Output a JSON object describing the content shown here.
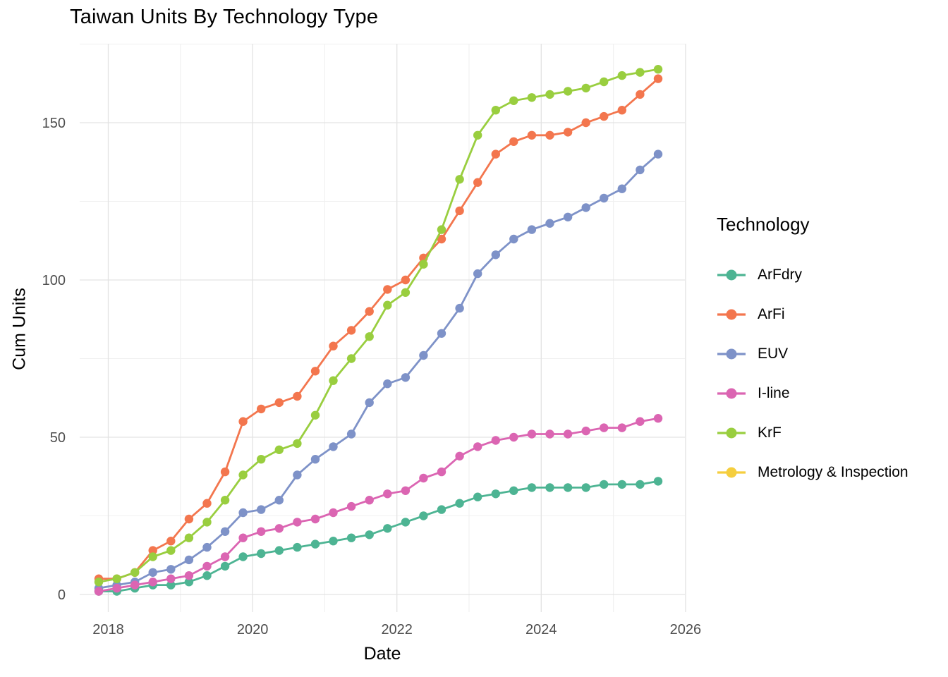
{
  "chart_data": {
    "type": "line",
    "title": "Taiwan Units By Technology Type",
    "xlabel": "Date",
    "ylabel": "Cum Units",
    "legend_title": "Technology",
    "legend_position": "right",
    "grid": true,
    "x_tick_labels": [
      "2018",
      "2020",
      "2022",
      "2024",
      "2026"
    ],
    "x_minor_gridline_years": [
      2019,
      2021,
      2023,
      2025
    ],
    "y_tick_labels": [
      "0",
      "50",
      "100",
      "150"
    ],
    "y_minor_gridline_values": [
      25,
      75,
      125,
      175
    ],
    "ylim": [
      -6,
      175
    ],
    "categories": [
      "2017 Q4",
      "2018 Q1",
      "2018 Q2",
      "2018 Q3",
      "2018 Q4",
      "2019 Q1",
      "2019 Q2",
      "2019 Q3",
      "2019 Q4",
      "2020 Q1",
      "2020 Q2",
      "2020 Q3",
      "2020 Q4",
      "2021 Q1",
      "2021 Q2",
      "2021 Q3",
      "2021 Q4",
      "2022 Q1",
      "2022 Q2",
      "2022 Q3",
      "2022 Q4",
      "2023 Q1",
      "2023 Q2",
      "2023 Q3",
      "2023 Q4",
      "2024 Q1",
      "2024 Q2",
      "2024 Q3",
      "2024 Q4",
      "2025 Q1",
      "2025 Q2",
      "2025 Q3"
    ],
    "series": [
      {
        "name": "ArFdry",
        "color": "#4DB493",
        "values": [
          1,
          1,
          2,
          3,
          3,
          4,
          6,
          9,
          12,
          13,
          14,
          15,
          16,
          17,
          18,
          19,
          21,
          23,
          25,
          27,
          29,
          31,
          32,
          33,
          34,
          34,
          34,
          34,
          35,
          35,
          35,
          36
        ]
      },
      {
        "name": "ArFi",
        "color": "#F3764E",
        "values": [
          5,
          5,
          7,
          14,
          17,
          24,
          29,
          39,
          55,
          59,
          61,
          63,
          71,
          79,
          84,
          90,
          97,
          100,
          107,
          113,
          122,
          131,
          140,
          144,
          146,
          146,
          147,
          150,
          152,
          154,
          159,
          164
        ]
      },
      {
        "name": "EUV",
        "color": "#7E92C8",
        "values": [
          2,
          3,
          4,
          7,
          8,
          11,
          15,
          20,
          26,
          27,
          30,
          38,
          43,
          47,
          51,
          61,
          67,
          69,
          76,
          83,
          91,
          102,
          108,
          113,
          116,
          118,
          120,
          123,
          126,
          129,
          135,
          140
        ]
      },
      {
        "name": "I-line",
        "color": "#DB65B2",
        "values": [
          1,
          2,
          3,
          4,
          5,
          6,
          9,
          12,
          18,
          20,
          21,
          23,
          24,
          26,
          28,
          30,
          32,
          33,
          37,
          39,
          44,
          47,
          49,
          50,
          51,
          51,
          51,
          52,
          53,
          53,
          55,
          56
        ]
      },
      {
        "name": "KrF",
        "color": "#99CE3F",
        "values": [
          4,
          5,
          7,
          12,
          14,
          18,
          23,
          30,
          38,
          43,
          46,
          48,
          57,
          68,
          75,
          82,
          92,
          96,
          105,
          116,
          132,
          146,
          154,
          157,
          158,
          159,
          160,
          161,
          163,
          165,
          166,
          167
        ]
      },
      {
        "name": "Metrology & Inspection",
        "color": "#F5CE3E",
        "values": []
      }
    ],
    "colors": {
      "grid_major": "#E3E3E3",
      "grid_minor": "#F0F0F0",
      "tick_label": "#4D4D4D",
      "text": "#000000",
      "background": "#FFFFFF"
    }
  }
}
